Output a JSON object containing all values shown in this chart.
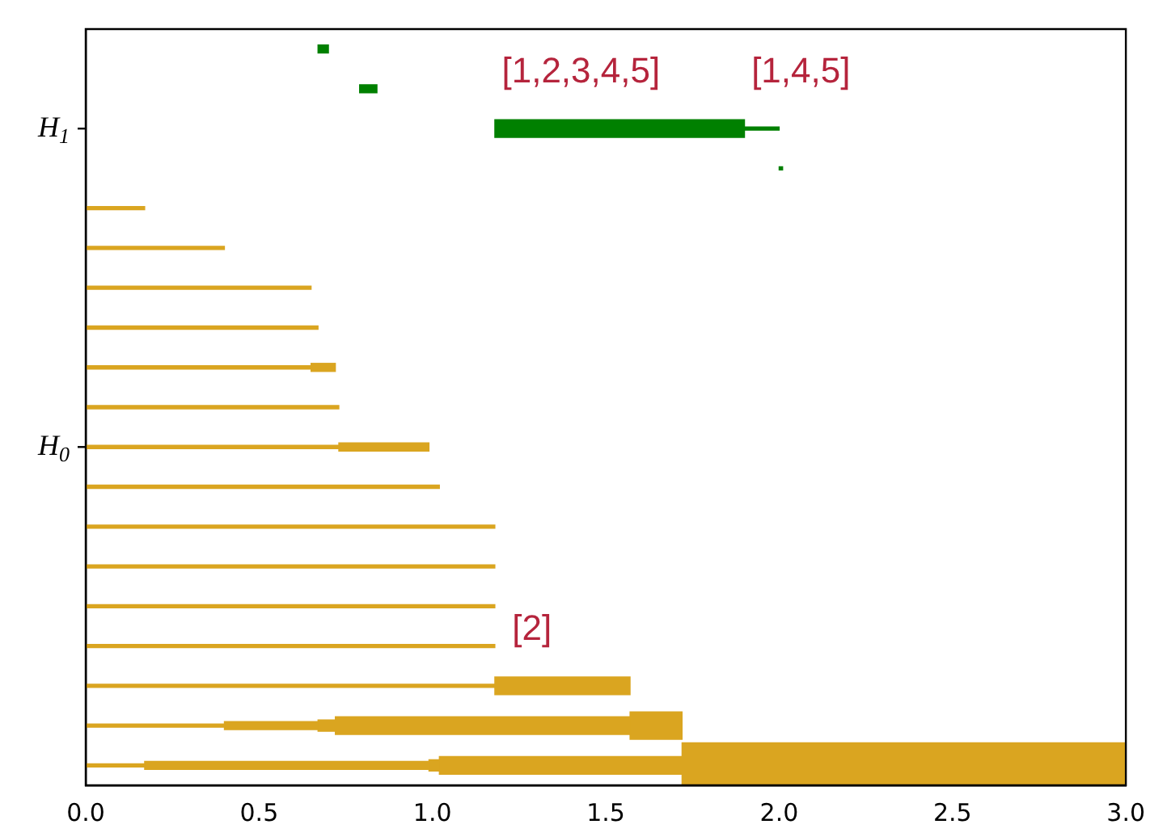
{
  "chart_data": {
    "type": "bar",
    "orientation": "horizontal",
    "categories": [
      null,
      null,
      "H$_{1}$",
      null,
      null,
      null,
      null,
      null,
      null,
      null,
      "H$_{0}$",
      null,
      null,
      null,
      null,
      null,
      null,
      null,
      null
    ],
    "xlim": [
      0,
      3
    ],
    "xticks": [
      {
        "value": 0,
        "label": "0.0"
      },
      0.5,
      {
        "value": 1,
        "label": "1.0"
      },
      1.5,
      {
        "value": 2,
        "label": "2.0"
      },
      2.5,
      {
        "value": 3,
        "label": "3.0"
      }
    ],
    "series": [
      {
        "base": [
          null,
          null,
          1.9,
          2.0,
          0,
          0,
          0,
          0,
          0,
          0,
          0,
          0,
          0,
          0,
          0,
          0,
          0,
          0,
          0
        ],
        "values": [
          null,
          null,
          0.1,
          0.01,
          0.17,
          0.4,
          0.65,
          0.67,
          0.65,
          0.73,
          0.73,
          1.02,
          1.18,
          1.18,
          1.18,
          1.18,
          1.18,
          0.4,
          0.17
        ],
        "colors": [
          "#008000",
          "#008000",
          "#008000",
          "#008000",
          "#daa520",
          "#daa520",
          "#daa520",
          "#daa520",
          "#daa520",
          "#daa520",
          "#daa520",
          "#daa520",
          "#daa520",
          "#daa520",
          "#daa520",
          "#daa520",
          "#daa520",
          "#daa520",
          "#daa520"
        ]
      },
      {
        "base": [
          0.67,
          0.79,
          null,
          null,
          null,
          null,
          null,
          null,
          0.65,
          null,
          0.73,
          null,
          null,
          null,
          null,
          null,
          null,
          0.4,
          0.17
        ],
        "values": [
          0.03,
          0.05,
          null,
          null,
          null,
          null,
          null,
          null,
          0.07,
          null,
          0.26,
          null,
          null,
          null,
          null,
          null,
          null,
          0.27,
          0.82
        ],
        "colors": [
          "#008000",
          "#008000",
          "#daa520",
          "#daa520",
          "#daa520",
          "#daa520",
          "#daa520",
          "#daa520",
          "#daa520",
          "#daa520",
          "#daa520",
          "#daa520",
          "#daa520",
          "#daa520",
          "#daa520",
          "#daa520",
          "#daa520",
          "#daa520",
          "#daa520"
        ]
      },
      {
        "base": [
          null,
          null,
          null,
          null,
          null,
          null,
          null,
          null,
          null,
          null,
          null,
          null,
          null,
          null,
          null,
          null,
          null,
          0.67,
          0.99
        ],
        "values": [
          null,
          null,
          null,
          null,
          null,
          null,
          null,
          null,
          null,
          null,
          null,
          null,
          null,
          null,
          null,
          null,
          null,
          0.05,
          0.03
        ],
        "color": "#daa520"
      },
      {
        "base": [
          null,
          null,
          1.18,
          null,
          null,
          null,
          null,
          null,
          null,
          null,
          null,
          null,
          null,
          null,
          null,
          null,
          1.18,
          0.72,
          1.02
        ],
        "values": [
          null,
          null,
          0.72,
          null,
          null,
          null,
          null,
          null,
          null,
          null,
          null,
          null,
          null,
          null,
          null,
          null,
          0.39,
          0.85,
          0.7
        ],
        "colors": [
          "#008000",
          "#008000",
          "#008000",
          "#daa520",
          "#daa520",
          "#daa520",
          "#daa520",
          "#daa520",
          "#daa520",
          "#daa520",
          "#daa520",
          "#daa520",
          "#daa520",
          "#daa520",
          "#daa520",
          "#daa520",
          "#daa520",
          "#daa520",
          "#daa520"
        ]
      },
      {
        "base": [
          null,
          null,
          null,
          null,
          null,
          null,
          null,
          null,
          null,
          null,
          null,
          null,
          null,
          null,
          null,
          null,
          null,
          1.57,
          null
        ],
        "values": [
          null,
          null,
          null,
          null,
          null,
          null,
          null,
          null,
          null,
          null,
          null,
          null,
          null,
          null,
          null,
          null,
          null,
          0.15,
          null
        ],
        "color": "#daa520"
      },
      {
        "base": [
          null,
          null,
          null,
          null,
          null,
          null,
          null,
          null,
          null,
          null,
          null,
          null,
          null,
          null,
          null,
          null,
          null,
          null,
          1.72
        ],
        "values": [
          null,
          null,
          null,
          null,
          null,
          null,
          null,
          null,
          null,
          null,
          null,
          null,
          null,
          null,
          null,
          null,
          null,
          null,
          1.28
        ],
        "color": "#daa520"
      }
    ],
    "annotations": [
      "[1,2,3,4,5]",
      "[1,4,5]",
      "[2]"
    ]
  }
}
